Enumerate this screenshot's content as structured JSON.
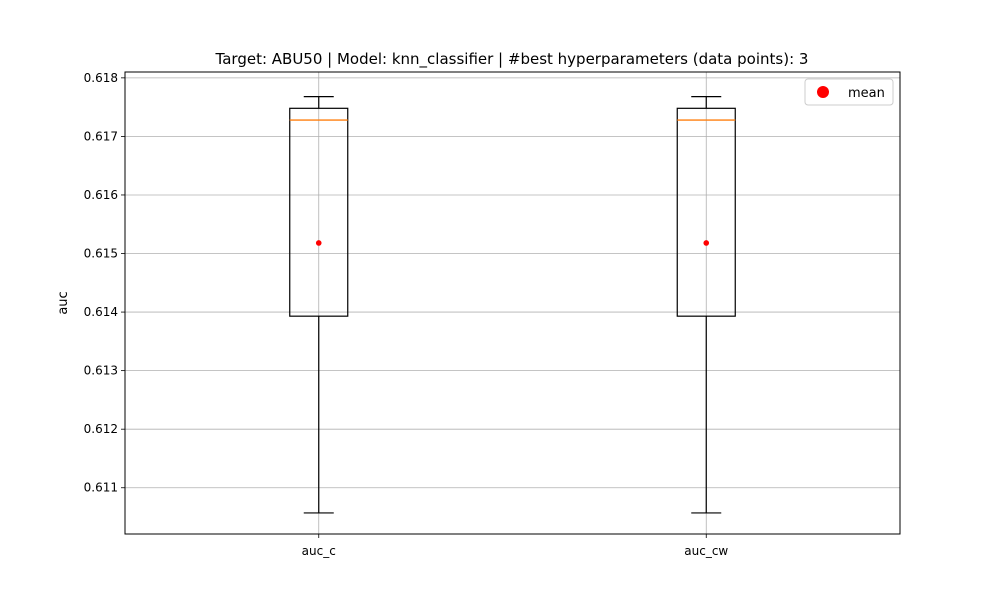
{
  "chart_data": {
    "type": "box",
    "title": "Target: ABU50 | Model: knn_classifier | #best hyperparameters (data points): 3",
    "xlabel": "",
    "ylabel": "auc",
    "ylim": [
      0.61021,
      0.6181
    ],
    "yticks": [
      0.611,
      0.612,
      0.613,
      0.614,
      0.615,
      0.616,
      0.617,
      0.618
    ],
    "ytick_labels": [
      "0.611",
      "0.612",
      "0.613",
      "0.614",
      "0.615",
      "0.616",
      "0.617",
      "0.618"
    ],
    "grid": true,
    "categories": [
      "auc_c",
      "auc_cw"
    ],
    "boxes": [
      {
        "label": "auc_c",
        "whislo": 0.61057,
        "q1": 0.61393,
        "med": 0.61728,
        "q3": 0.61748,
        "whishi": 0.61768,
        "mean": 0.61518
      },
      {
        "label": "auc_cw",
        "whislo": 0.61057,
        "q1": 0.61393,
        "med": 0.61728,
        "q3": 0.61748,
        "whishi": 0.61768,
        "mean": 0.61518
      }
    ],
    "legend": {
      "position": "top-right",
      "entries": [
        {
          "label": "mean",
          "color": "#ff0000",
          "marker": "circle"
        }
      ]
    },
    "colors": {
      "box": "#000000",
      "median": "#ff7f0e",
      "mean": "#ff0000",
      "grid": "#b0b0b0"
    }
  }
}
